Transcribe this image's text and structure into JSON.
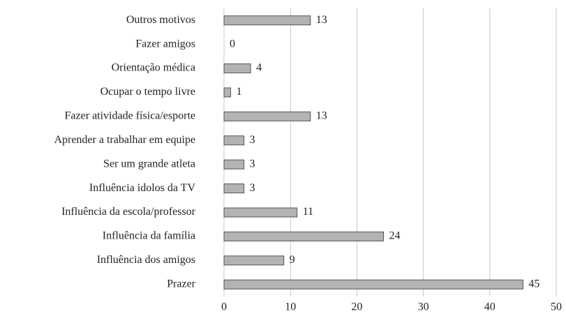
{
  "chart_data": {
    "type": "bar",
    "orientation": "horizontal",
    "categories": [
      "Outros motivos",
      "Fazer amigos",
      "Orientação médica",
      "Ocupar o tempo livre",
      "Fazer atividade física/esporte",
      "Aprender a trabalhar em equipe",
      "Ser um grande atleta",
      "Influência idolos da TV",
      "Influência da escola/professor",
      "Influência da família",
      "Influência dos amigos",
      "Prazer"
    ],
    "values": [
      13,
      0,
      4,
      1,
      13,
      3,
      3,
      3,
      11,
      24,
      9,
      45
    ],
    "color": "#b3b3b3",
    "xlim": [
      0,
      50
    ],
    "xticks": [
      0,
      10,
      20,
      30,
      40,
      50
    ],
    "grid": true
  }
}
